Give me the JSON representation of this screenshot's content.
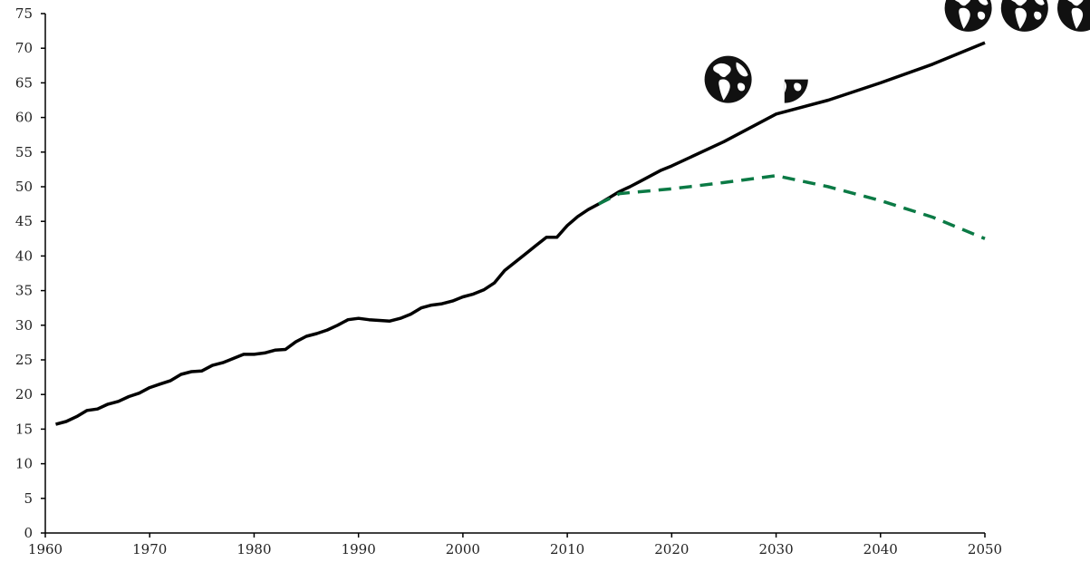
{
  "chart_data": {
    "type": "line",
    "title": "",
    "xlabel": "",
    "ylabel": "",
    "xlim": [
      1960,
      2050
    ],
    "ylim": [
      0,
      75
    ],
    "x_ticks": [
      "1960",
      "1970",
      "1980",
      "1990",
      "2000",
      "2010",
      "2020",
      "2030",
      "2040",
      "2050"
    ],
    "y_ticks": [
      "0",
      "5",
      "10",
      "15",
      "20",
      "25",
      "30",
      "35",
      "40",
      "45",
      "50",
      "55",
      "60",
      "65",
      "70",
      "75"
    ],
    "grid": false,
    "legend": "none",
    "series": [
      {
        "color": "#000000",
        "style": "solid",
        "points": [
          [
            1961,
            15.7
          ],
          [
            1962,
            16.1
          ],
          [
            1963,
            16.8
          ],
          [
            1964,
            17.7
          ],
          [
            1965,
            17.9
          ],
          [
            1966,
            18.6
          ],
          [
            1967,
            19.0
          ],
          [
            1968,
            19.7
          ],
          [
            1969,
            20.2
          ],
          [
            1970,
            21.0
          ],
          [
            1971,
            21.5
          ],
          [
            1972,
            22.0
          ],
          [
            1973,
            22.9
          ],
          [
            1974,
            23.3
          ],
          [
            1975,
            23.4
          ],
          [
            1976,
            24.2
          ],
          [
            1977,
            24.6
          ],
          [
            1978,
            25.2
          ],
          [
            1979,
            25.8
          ],
          [
            1980,
            25.8
          ],
          [
            1981,
            26.0
          ],
          [
            1982,
            26.4
          ],
          [
            1983,
            26.5
          ],
          [
            1984,
            27.6
          ],
          [
            1985,
            28.4
          ],
          [
            1986,
            28.8
          ],
          [
            1987,
            29.3
          ],
          [
            1988,
            30.0
          ],
          [
            1989,
            30.8
          ],
          [
            1990,
            31.0
          ],
          [
            1991,
            30.8
          ],
          [
            1992,
            30.7
          ],
          [
            1993,
            30.6
          ],
          [
            1994,
            31.0
          ],
          [
            1995,
            31.6
          ],
          [
            1996,
            32.5
          ],
          [
            1997,
            32.9
          ],
          [
            1998,
            33.1
          ],
          [
            1999,
            33.5
          ],
          [
            2000,
            34.1
          ],
          [
            2001,
            34.5
          ],
          [
            2002,
            35.1
          ],
          [
            2003,
            36.1
          ],
          [
            2004,
            37.9
          ],
          [
            2005,
            39.1
          ],
          [
            2006,
            40.3
          ],
          [
            2007,
            41.5
          ],
          [
            2008,
            42.7
          ],
          [
            2009,
            42.7
          ],
          [
            2010,
            44.4
          ],
          [
            2011,
            45.7
          ],
          [
            2012,
            46.7
          ],
          [
            2013,
            47.5
          ],
          [
            2014,
            48.4
          ],
          [
            2015,
            49.3
          ],
          [
            2016,
            50.0
          ],
          [
            2017,
            50.8
          ],
          [
            2018,
            51.6
          ],
          [
            2019,
            52.4
          ],
          [
            2020,
            53.0
          ],
          [
            2025,
            56.5
          ],
          [
            2030,
            60.5
          ],
          [
            2035,
            62.5
          ],
          [
            2040,
            65.0
          ],
          [
            2045,
            67.7
          ],
          [
            2050,
            70.8
          ]
        ]
      },
      {
        "color": "#0b7a45",
        "style": "dashed",
        "points": [
          [
            2013,
            47.5
          ],
          [
            2015,
            49.0
          ],
          [
            2020,
            49.7
          ],
          [
            2025,
            50.6
          ],
          [
            2030,
            51.6
          ],
          [
            2035,
            50.0
          ],
          [
            2040,
            48.0
          ],
          [
            2045,
            45.6
          ],
          [
            2050,
            42.5
          ]
        ]
      }
    ],
    "icons": [
      {
        "name": "globe-icon",
        "x": 2025.4,
        "y": 65.5
      },
      {
        "name": "globe-icon",
        "x": 2030.8,
        "y": 65.5
      },
      {
        "name": "globe-icon",
        "x": 2048.4,
        "y": 75.8
      },
      {
        "name": "globe-icon",
        "x": 2053.8,
        "y": 75.8
      },
      {
        "name": "globe-icon",
        "x": 2059.2,
        "y": 75.8
      }
    ]
  }
}
